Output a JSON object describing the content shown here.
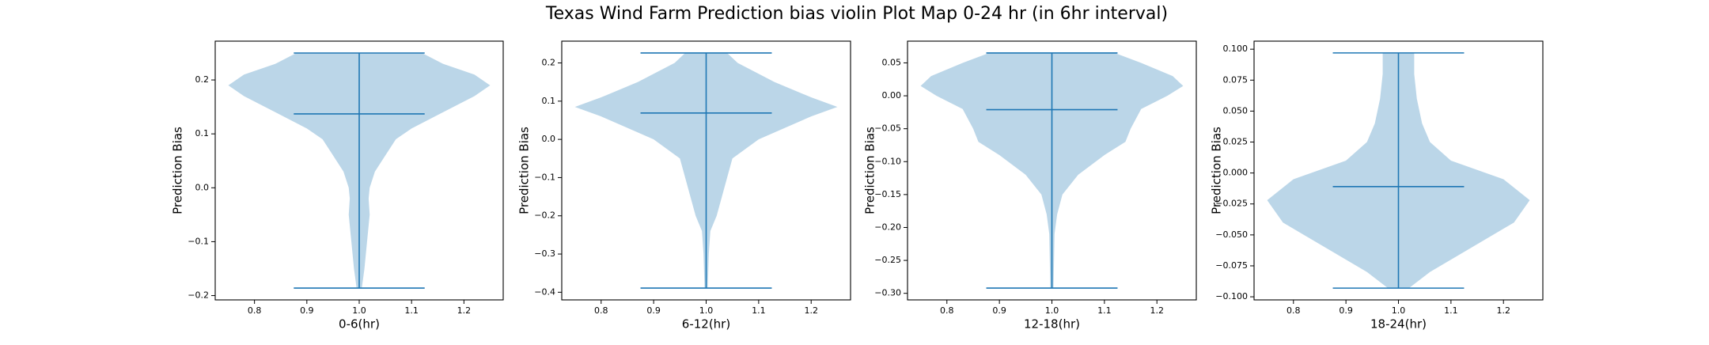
{
  "title": "Texas Wind Farm Prediction bias violin Plot Map 0-24 hr (in 6hr interval)",
  "chart_data": [
    {
      "type": "violin",
      "xlabel": "0-6(hr)",
      "ylabel": "Prediction Bias",
      "color": "#1f77b4",
      "position": 1,
      "xlim": [
        0.725,
        1.275
      ],
      "xticks": [
        0.8,
        0.9,
        {
          "value": 1,
          "label": "1.0"
        },
        1.1,
        1.2
      ],
      "ylim": [
        -0.208,
        0.272
      ],
      "yticks": [
        {
          "value": -0.2,
          "label": "−0.2"
        },
        {
          "value": -0.1,
          "label": "−0.1"
        },
        {
          "value": 0,
          "label": "0.0"
        },
        0.1,
        0.2
      ],
      "min": -0.186,
      "max": 0.25,
      "mean": 0.137,
      "violin": {
        "y": [
          -0.186,
          -0.15,
          -0.1,
          -0.05,
          -0.02,
          0,
          0.03,
          0.06,
          0.09,
          0.11,
          0.14,
          0.17,
          0.19,
          0.21,
          0.23,
          0.25
        ],
        "half_width": [
          0.005,
          0.01,
          0.015,
          0.02,
          0.018,
          0.02,
          0.03,
          0.05,
          0.07,
          0.1,
          0.16,
          0.22,
          0.25,
          0.22,
          0.16,
          0.12
        ]
      }
    },
    {
      "type": "violin",
      "xlabel": "6-12(hr)",
      "ylabel": "Prediction Bias",
      "color": "#1f77b4",
      "position": 1,
      "xlim": [
        0.725,
        1.275
      ],
      "xticks": [
        0.8,
        0.9,
        {
          "value": 1,
          "label": "1.0"
        },
        1.1,
        1.2
      ],
      "ylim": [
        -0.42,
        0.257
      ],
      "yticks": [
        {
          "value": -0.4,
          "label": "−0.4"
        },
        {
          "value": -0.3,
          "label": "−0.3"
        },
        {
          "value": -0.2,
          "label": "−0.2"
        },
        {
          "value": -0.1,
          "label": "−0.1"
        },
        {
          "value": 0,
          "label": "0.0"
        },
        0.1,
        0.2
      ],
      "min": -0.389,
      "max": 0.226,
      "mean": 0.069,
      "violin": {
        "y": [
          -0.389,
          -0.3,
          -0.24,
          -0.2,
          -0.15,
          -0.1,
          -0.05,
          0,
          0.03,
          0.06,
          0.085,
          0.11,
          0.15,
          0.2,
          0.226
        ],
        "half_width": [
          0.003,
          0.005,
          0.008,
          0.02,
          0.03,
          0.04,
          0.05,
          0.1,
          0.15,
          0.2,
          0.25,
          0.2,
          0.13,
          0.06,
          0.04
        ]
      }
    },
    {
      "type": "violin",
      "xlabel": "12-18(hr)",
      "ylabel": "Prediction Bias",
      "color": "#1f77b4",
      "position": 1,
      "xlim": [
        0.725,
        1.275
      ],
      "xticks": [
        0.8,
        0.9,
        {
          "value": 1,
          "label": "1.0"
        },
        1.1,
        1.2
      ],
      "ylim": [
        -0.31,
        0.083
      ],
      "yticks": [
        {
          "value": -0.3,
          "label": "−0.30"
        },
        {
          "value": -0.25,
          "label": "−0.25"
        },
        {
          "value": -0.2,
          "label": "−0.20"
        },
        {
          "value": -0.15,
          "label": "−0.15"
        },
        {
          "value": -0.1,
          "label": "−0.10"
        },
        {
          "value": -0.05,
          "label": "−0.05"
        },
        {
          "value": 0,
          "label": "0.00"
        },
        0.05
      ],
      "min": -0.292,
      "max": 0.065,
      "mean": -0.021,
      "violin": {
        "y": [
          -0.292,
          -0.21,
          -0.18,
          -0.15,
          -0.12,
          -0.09,
          -0.07,
          -0.05,
          -0.02,
          0,
          0.015,
          0.03,
          0.05,
          0.065
        ],
        "half_width": [
          0.003,
          0.005,
          0.01,
          0.02,
          0.05,
          0.1,
          0.14,
          0.15,
          0.17,
          0.22,
          0.25,
          0.23,
          0.17,
          0.12
        ]
      }
    },
    {
      "type": "violin",
      "xlabel": "18-24(hr)",
      "ylabel": "Prediction Bias",
      "color": "#1f77b4",
      "position": 1,
      "xlim": [
        0.725,
        1.275
      ],
      "xticks": [
        0.8,
        0.9,
        {
          "value": 1,
          "label": "1.0"
        },
        1.1,
        1.2
      ],
      "ylim": [
        -0.1025,
        0.1065
      ],
      "yticks": [
        {
          "value": -0.1,
          "label": "−0.100"
        },
        {
          "value": -0.075,
          "label": "−0.075"
        },
        {
          "value": -0.05,
          "label": "−0.050"
        },
        {
          "value": -0.025,
          "label": "−0.025"
        },
        {
          "value": 0,
          "label": "0.000"
        },
        {
          "value": 0.025,
          "label": "0.025"
        },
        {
          "value": 0.05,
          "label": "0.050"
        },
        {
          "value": 0.075,
          "label": "0.075"
        },
        {
          "value": 0.1,
          "label": "0.100"
        }
      ],
      "min": -0.093,
      "max": 0.097,
      "mean": -0.011,
      "violin": {
        "y": [
          -0.093,
          -0.08,
          -0.06,
          -0.04,
          -0.022,
          -0.005,
          0.01,
          0.025,
          0.04,
          0.06,
          0.08,
          0.097
        ],
        "half_width": [
          0.02,
          0.06,
          0.14,
          0.22,
          0.25,
          0.2,
          0.1,
          0.06,
          0.045,
          0.035,
          0.03,
          0.03
        ]
      }
    }
  ]
}
